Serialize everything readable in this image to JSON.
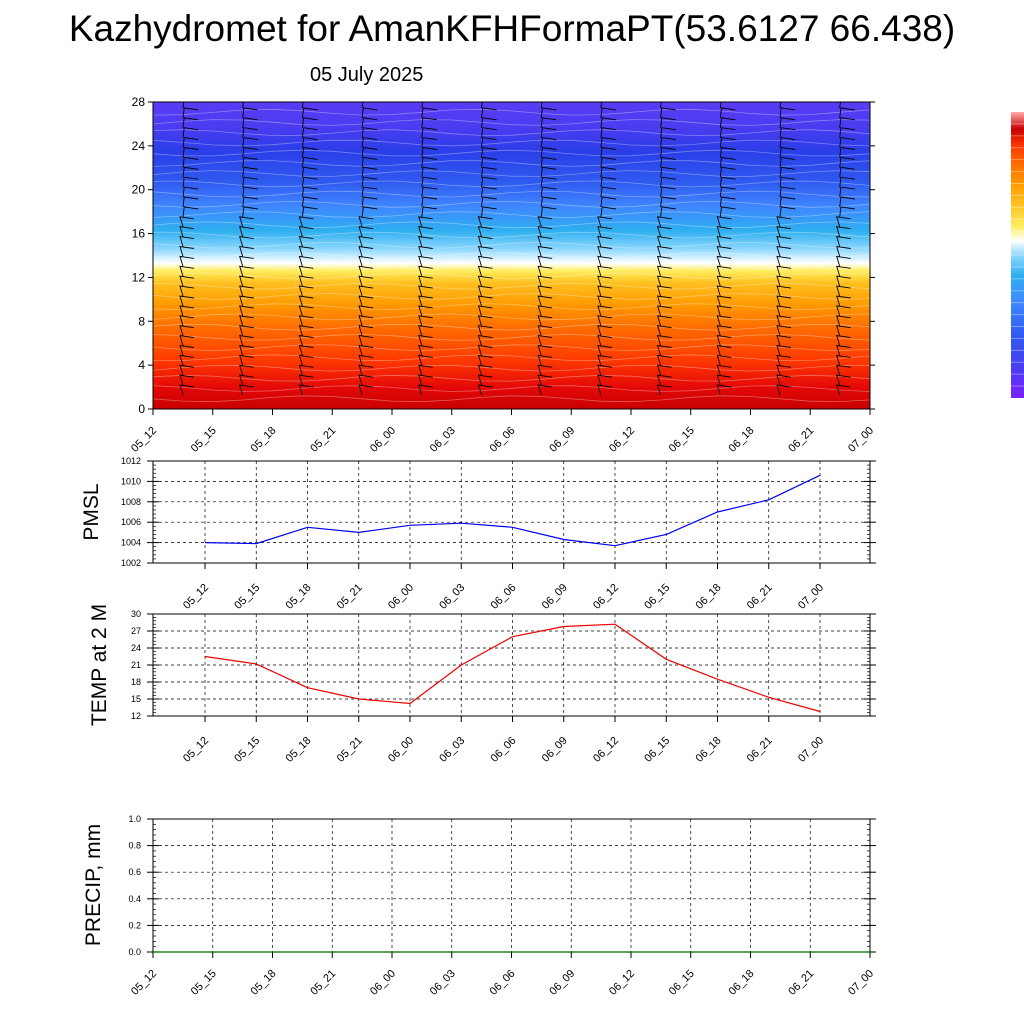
{
  "title": "Kazhydromet for AmanKFHFormaPT(53.6127 66.438)",
  "subtitle": "05 July 2025",
  "chart_data": [
    {
      "type": "heatmap",
      "name": "time-height cross section",
      "xlabel": "",
      "ylabel": "",
      "x_ticks": [
        "05_12",
        "05_15",
        "05_18",
        "05_21",
        "06_00",
        "06_03",
        "06_06",
        "06_09",
        "06_12",
        "06_15",
        "06_18",
        "06_21",
        "07_00"
      ],
      "y_ticks": [
        0,
        4,
        8,
        12,
        16,
        20,
        24,
        28
      ],
      "ylim": [
        0,
        28
      ],
      "colorbar": [
        "#7a1fff",
        "#4b3cf0",
        "#2f5af0",
        "#3f86ff",
        "#2fb0f0",
        "#8fd8ff",
        "#ffffff",
        "#ffee60",
        "#ffc020",
        "#ff9a00",
        "#ff6a00",
        "#ff3a00",
        "#ee1010",
        "#c80000",
        "#ffaaaa"
      ]
    },
    {
      "type": "line",
      "name": "PMSL",
      "ylabel": "PMSL",
      "xlabel": "",
      "categories": [
        "05_12",
        "05_15",
        "05_18",
        "05_21",
        "06_00",
        "06_03",
        "06_06",
        "06_09",
        "06_12",
        "06_15",
        "06_18",
        "06_21",
        "07_00"
      ],
      "values": [
        1004.0,
        1003.9,
        1005.5,
        1005.0,
        1005.7,
        1005.9,
        1005.5,
        1004.3,
        1003.7,
        1004.8,
        1007.0,
        1008.2,
        1010.6
      ],
      "y_ticks": [
        1002,
        1004,
        1006,
        1008,
        1010,
        1012
      ],
      "ylim": [
        1002,
        1012
      ],
      "color": "#0000ee",
      "grid": true
    },
    {
      "type": "line",
      "name": "TEMP at 2 M",
      "ylabel": "TEMP at 2 M",
      "xlabel": "",
      "categories": [
        "05_12",
        "05_15",
        "05_18",
        "05_21",
        "06_00",
        "06_03",
        "06_06",
        "06_09",
        "06_12",
        "06_15",
        "06_18",
        "06_21",
        "07_00"
      ],
      "values": [
        22.5,
        21.2,
        17.0,
        15.0,
        14.2,
        21.0,
        26.0,
        27.8,
        28.2,
        22.0,
        18.5,
        15.3,
        12.8
      ],
      "y_ticks": [
        12,
        15,
        18,
        21,
        24,
        27,
        30
      ],
      "ylim": [
        12,
        30
      ],
      "color": "#ee0000",
      "grid": true
    },
    {
      "type": "line",
      "name": "PRECIP, mm",
      "ylabel": "PRECIP, mm",
      "xlabel": "",
      "categories": [
        "05_12",
        "05_15",
        "05_18",
        "05_21",
        "06_00",
        "06_03",
        "06_06",
        "06_09",
        "06_12",
        "06_15",
        "06_18",
        "06_21",
        "07_00"
      ],
      "values": [
        0,
        0,
        0,
        0,
        0,
        0,
        0,
        0,
        0,
        0,
        0,
        0,
        0
      ],
      "y_ticks": [
        "0.0",
        "0.2",
        "0.4",
        "0.6",
        "0.8",
        "1.0"
      ],
      "ylim": [
        0,
        1
      ],
      "color": "#006400",
      "grid": true
    }
  ]
}
